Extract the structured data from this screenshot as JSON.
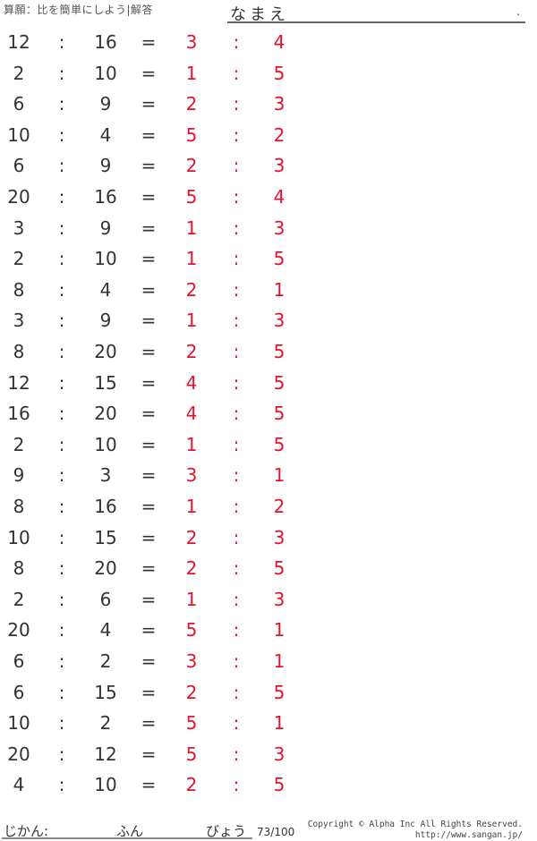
{
  "header": {
    "title": "算願：比を簡単にしよう|解答",
    "name_label": "なまえ",
    "name_dot": "."
  },
  "colors": {
    "answer": "#e8112d",
    "text": "#333333"
  },
  "problems": [
    {
      "a": "12",
      "b": "16",
      "c": "3",
      "d": "4"
    },
    {
      "a": "2",
      "b": "10",
      "c": "1",
      "d": "5"
    },
    {
      "a": "6",
      "b": "9",
      "c": "2",
      "d": "3"
    },
    {
      "a": "10",
      "b": "4",
      "c": "5",
      "d": "2"
    },
    {
      "a": "6",
      "b": "9",
      "c": "2",
      "d": "3"
    },
    {
      "a": "20",
      "b": "16",
      "c": "5",
      "d": "4"
    },
    {
      "a": "3",
      "b": "9",
      "c": "1",
      "d": "3"
    },
    {
      "a": "2",
      "b": "10",
      "c": "1",
      "d": "5"
    },
    {
      "a": "8",
      "b": "4",
      "c": "2",
      "d": "1"
    },
    {
      "a": "3",
      "b": "9",
      "c": "1",
      "d": "3"
    },
    {
      "a": "8",
      "b": "20",
      "c": "2",
      "d": "5"
    },
    {
      "a": "12",
      "b": "15",
      "c": "4",
      "d": "5"
    },
    {
      "a": "16",
      "b": "20",
      "c": "4",
      "d": "5"
    },
    {
      "a": "2",
      "b": "10",
      "c": "1",
      "d": "5"
    },
    {
      "a": "9",
      "b": "3",
      "c": "3",
      "d": "1"
    },
    {
      "a": "8",
      "b": "16",
      "c": "1",
      "d": "2"
    },
    {
      "a": "10",
      "b": "15",
      "c": "2",
      "d": "3"
    },
    {
      "a": "8",
      "b": "20",
      "c": "2",
      "d": "5"
    },
    {
      "a": "2",
      "b": "6",
      "c": "1",
      "d": "3"
    },
    {
      "a": "20",
      "b": "4",
      "c": "5",
      "d": "1"
    },
    {
      "a": "6",
      "b": "2",
      "c": "3",
      "d": "1"
    },
    {
      "a": "6",
      "b": "15",
      "c": "2",
      "d": "5"
    },
    {
      "a": "10",
      "b": "2",
      "c": "5",
      "d": "1"
    },
    {
      "a": "20",
      "b": "12",
      "c": "5",
      "d": "3"
    },
    {
      "a": "4",
      "b": "10",
      "c": "2",
      "d": "5"
    }
  ],
  "symbols": {
    "colon": ":",
    "equals": "="
  },
  "footer": {
    "time_label": "じかん:",
    "minutes": "ふん",
    "seconds": "びょう",
    "page": "73/100",
    "copyright": "Copyright © Alpha Inc All Rights Reserved.",
    "url": "http://www.sangan.jp/"
  }
}
